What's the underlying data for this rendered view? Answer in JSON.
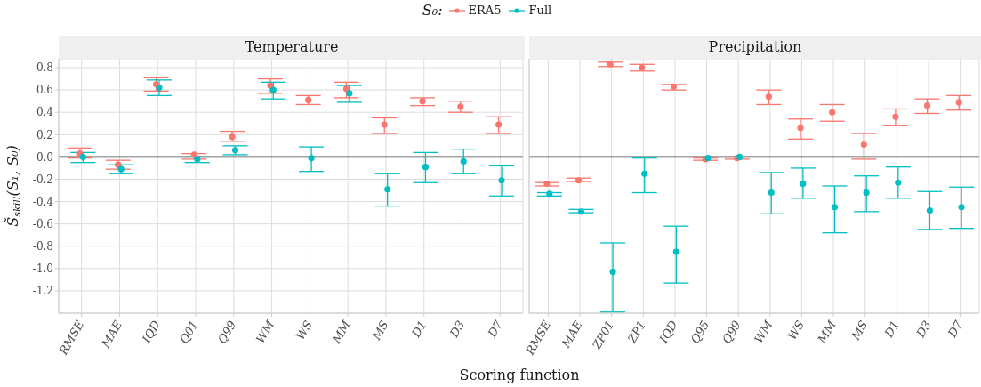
{
  "chart_data": [
    {
      "type": "scatter",
      "title": "Temperature",
      "xlabel": "Scoring function",
      "ylabel": "S̃$_{skill}$(S₁, S₀)",
      "legend_title": "S₀:",
      "legend": "top",
      "grid": true,
      "marker": "circle",
      "categories": [
        "RMSE",
        "MAE",
        "IQD",
        "Q01",
        "Q99",
        "WM",
        "WS",
        "MM",
        "MS",
        "D1",
        "D3",
        "D7"
      ],
      "ylim": [
        -1.4,
        0.88
      ],
      "yticks": [
        -1.2,
        {
          "value": -1,
          "label": "-1.0"
        },
        -0.8,
        -0.6,
        -0.4,
        -0.2,
        {
          "value": 0,
          "label": "0.0"
        },
        0.2,
        0.4,
        0.6,
        0.8
      ],
      "ref_lines": [
        {
          "axis": "y",
          "value": 0,
          "color": "#4d4d4d"
        }
      ],
      "series": [
        {
          "name": "ERA5",
          "color": "#f8766d",
          "values": [
            0.03,
            -0.07,
            0.65,
            0.02,
            0.18,
            0.64,
            0.51,
            0.61,
            0.29,
            0.5,
            0.45,
            0.29
          ],
          "errors": [
            [
              -0.01,
              0.08
            ],
            [
              -0.11,
              -0.03
            ],
            [
              0.59,
              0.71
            ],
            [
              -0.02,
              0.03
            ],
            [
              0.14,
              0.23
            ],
            [
              0.57,
              0.7
            ],
            [
              0.47,
              0.55
            ],
            [
              0.53,
              0.67
            ],
            [
              0.21,
              0.35
            ],
            [
              0.46,
              0.53
            ],
            [
              0.4,
              0.5
            ],
            [
              0.21,
              0.36
            ]
          ]
        },
        {
          "name": "Full",
          "color": "#00bfc4",
          "values": [
            0.0,
            -0.11,
            0.62,
            -0.02,
            0.06,
            0.6,
            -0.01,
            0.57,
            -0.29,
            -0.09,
            -0.04,
            -0.21
          ],
          "errors": [
            [
              -0.05,
              0.04
            ],
            [
              -0.15,
              -0.07
            ],
            [
              0.55,
              0.69
            ],
            [
              -0.05,
              0.0
            ],
            [
              0.02,
              0.1
            ],
            [
              0.52,
              0.67
            ],
            [
              -0.13,
              0.09
            ],
            [
              0.49,
              0.64
            ],
            [
              -0.44,
              -0.15
            ],
            [
              -0.23,
              0.04
            ],
            [
              -0.15,
              0.07
            ],
            [
              -0.35,
              -0.08
            ]
          ]
        }
      ]
    },
    {
      "type": "scatter",
      "title": "Precipitation",
      "grid": true,
      "marker": "circle",
      "tick_labels": "x",
      "categories": [
        "RMSE",
        "MAE",
        "ZP01",
        "ZP1",
        "IQD",
        "Q95",
        "Q99",
        "WM",
        "WS",
        "MM",
        "MS",
        "D1",
        "D3",
        "D7"
      ],
      "ylim": [
        -1.4,
        0.88
      ],
      "yticks": [
        -1.2,
        -1.0,
        -0.8,
        -0.6,
        -0.4,
        -0.2,
        0.0,
        0.2,
        0.4,
        0.6,
        0.8
      ],
      "ref_lines": [
        {
          "axis": "y",
          "value": 0,
          "color": "#4d4d4d"
        }
      ],
      "series": [
        {
          "color": "#f8766d",
          "values": [
            -0.24,
            -0.21,
            0.83,
            0.8,
            0.63,
            -0.02,
            -0.01,
            0.54,
            0.26,
            0.4,
            0.11,
            0.36,
            0.46,
            0.49
          ],
          "errors": [
            [
              -0.26,
              -0.23
            ],
            [
              -0.22,
              -0.19
            ],
            [
              0.81,
              0.85
            ],
            [
              0.77,
              0.83
            ],
            [
              0.6,
              0.65
            ],
            0.01,
            0.01,
            [
              0.47,
              0.6
            ],
            [
              0.16,
              0.34
            ],
            [
              0.32,
              0.47
            ],
            [
              -0.02,
              0.21
            ],
            [
              0.28,
              0.43
            ],
            [
              0.39,
              0.52
            ],
            [
              0.42,
              0.55
            ]
          ]
        },
        {
          "color": "#00bfc4",
          "values": [
            -0.33,
            -0.49,
            -1.03,
            -0.15,
            -0.85,
            -0.01,
            0.0,
            -0.32,
            -0.24,
            -0.45,
            -0.32,
            -0.23,
            -0.48,
            -0.45
          ],
          "errors": [
            [
              -0.35,
              -0.32
            ],
            [
              -0.5,
              -0.47
            ],
            [
              -1.39,
              -0.77
            ],
            [
              -0.32,
              -0.01
            ],
            [
              -1.13,
              -0.62
            ],
            null,
            null,
            [
              -0.51,
              -0.14
            ],
            [
              -0.37,
              -0.1
            ],
            [
              -0.68,
              -0.26
            ],
            [
              -0.49,
              -0.17
            ],
            [
              -0.37,
              -0.09
            ],
            [
              -0.65,
              -0.31
            ],
            [
              -0.64,
              -0.27
            ]
          ]
        }
      ]
    }
  ]
}
